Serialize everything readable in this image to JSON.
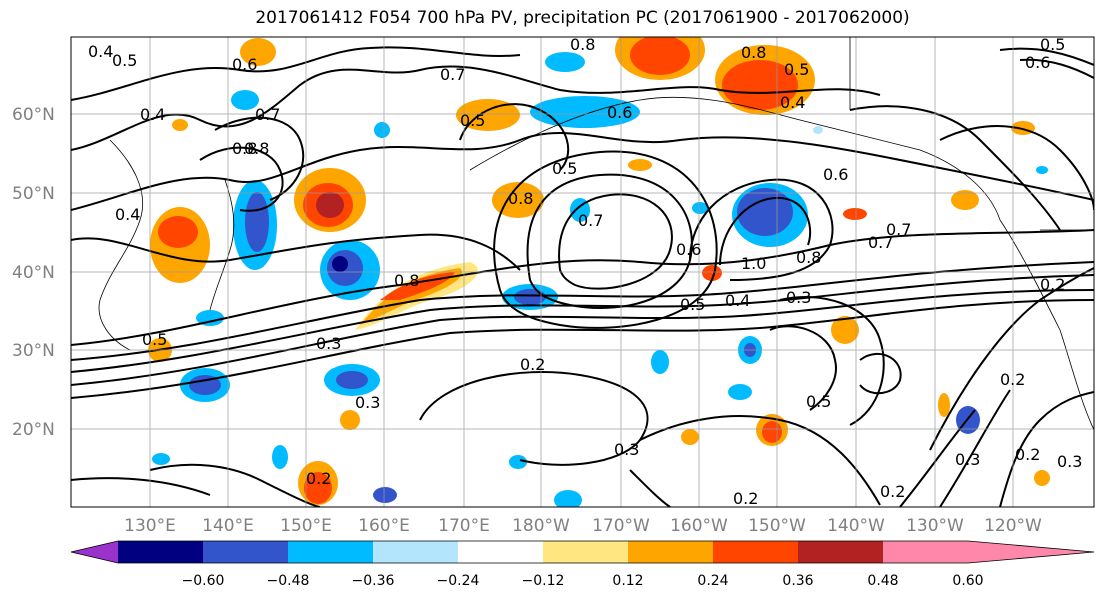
{
  "title": "2017061412 F054 700 hPa PV, precipitation PC (2017061900 - 2017062000)",
  "lat_labels": [
    "60°N",
    "50°N",
    "40°N",
    "30°N",
    "20°N"
  ],
  "lon_labels": [
    "130°E",
    "140°E",
    "150°E",
    "160°E",
    "170°E",
    "180°W",
    "170°W",
    "160°W",
    "150°W",
    "140°W",
    "130°W",
    "120°W"
  ],
  "colorbar": {
    "colors": [
      "#9933cc",
      "#000080",
      "#3355cc",
      "#00bbff",
      "#b3e5fc",
      "#ffffff",
      "#ffe680",
      "#ffa500",
      "#ff4500",
      "#b22222",
      "#ff88aa"
    ],
    "tick_labels": [
      "−0.60",
      "−0.48",
      "−0.36",
      "−0.24",
      "−0.12",
      "0.12",
      "0.24",
      "0.36",
      "0.48",
      "0.60"
    ]
  },
  "contour_labels": [
    "0.4",
    "0.5",
    "0.6",
    "0.7",
    "0.8",
    "0.7",
    "0.5",
    "0.8",
    "0.8",
    "0.8",
    "0.5",
    "0.6",
    "0.5",
    "0.5",
    "0.4",
    "0.7",
    "0.8",
    "0.6",
    "0.4",
    "0.8",
    "0.7",
    "0.6",
    "1.0",
    "0.8",
    "0.7",
    "0.5",
    "0.4",
    "0.3",
    "0.3",
    "0.2",
    "0.3",
    "0.2",
    "0.3",
    "0.5",
    "0.3",
    "0.2",
    "0.2",
    "0.2",
    "0.3",
    "0.2",
    "0.2",
    "0.6",
    "0.5",
    "0.4"
  ]
}
